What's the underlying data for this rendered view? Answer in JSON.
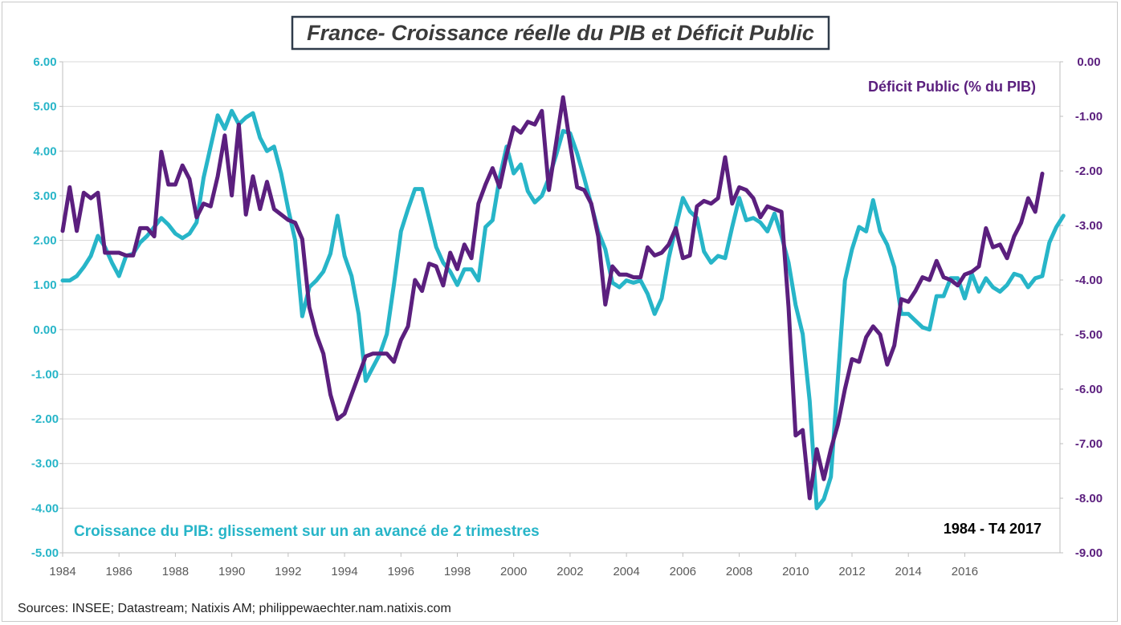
{
  "chart_data": {
    "type": "line",
    "title": "France- Croissance réelle du PIB et Déficit Public",
    "period_label": "1984 - T4 2017",
    "source": "Sources: INSEE; Datastream; Natixis AM; philippewaechter.nam.natixis.com",
    "grid": true,
    "x_axis": {
      "range": [
        1984,
        2018
      ],
      "ticks": [
        "1984",
        "1986",
        "1988",
        "1990",
        "1992",
        "1994",
        "1996",
        "1998",
        "2000",
        "2002",
        "2004",
        "2006",
        "2008",
        "2010",
        "2012",
        "2014",
        "2016"
      ]
    },
    "y_left": {
      "range": [
        -5,
        6
      ],
      "ticks": [
        "6.00",
        "5.00",
        "4.00",
        "3.00",
        "2.00",
        "1.00",
        "0.00",
        "-1.00",
        "-2.00",
        "-3.00",
        "-4.00",
        "-5.00"
      ]
    },
    "y_right": {
      "range": [
        -9,
        0
      ],
      "ticks": [
        "0.00",
        "-1.00",
        "-2.00",
        "-3.00",
        "-4.00",
        "-5.00",
        "-6.00",
        "-7.00",
        "-8.00",
        "-9.00"
      ]
    },
    "series": [
      {
        "name": "Croissance du PIB: glissement sur un an avancé de 2 trimestres",
        "axis": "left",
        "color": "#27b5c8",
        "points": [
          [
            1984.0,
            1.1
          ],
          [
            1984.25,
            1.1
          ],
          [
            1984.5,
            1.2
          ],
          [
            1984.75,
            1.4
          ],
          [
            1985.0,
            1.65
          ],
          [
            1985.25,
            2.1
          ],
          [
            1985.5,
            1.85
          ],
          [
            1985.75,
            1.5
          ],
          [
            1986.0,
            1.2
          ],
          [
            1986.25,
            1.65
          ],
          [
            1986.5,
            1.7
          ],
          [
            1986.75,
            1.95
          ],
          [
            1987.0,
            2.1
          ],
          [
            1987.25,
            2.3
          ],
          [
            1987.5,
            2.5
          ],
          [
            1987.75,
            2.35
          ],
          [
            1988.0,
            2.15
          ],
          [
            1988.25,
            2.05
          ],
          [
            1988.5,
            2.15
          ],
          [
            1988.75,
            2.4
          ],
          [
            1989.0,
            3.4
          ],
          [
            1989.25,
            4.1
          ],
          [
            1989.5,
            4.8
          ],
          [
            1989.75,
            4.5
          ],
          [
            1990.0,
            4.9
          ],
          [
            1990.25,
            4.6
          ],
          [
            1990.5,
            4.75
          ],
          [
            1990.75,
            4.85
          ],
          [
            1991.0,
            4.3
          ],
          [
            1991.25,
            4.0
          ],
          [
            1991.5,
            4.1
          ],
          [
            1991.75,
            3.5
          ],
          [
            1992.0,
            2.7
          ],
          [
            1992.25,
            2.0
          ],
          [
            1992.5,
            0.3
          ],
          [
            1992.75,
            0.95
          ],
          [
            1993.0,
            1.1
          ],
          [
            1993.25,
            1.3
          ],
          [
            1993.5,
            1.7
          ],
          [
            1993.75,
            2.55
          ],
          [
            1994.0,
            1.65
          ],
          [
            1994.25,
            1.2
          ],
          [
            1994.5,
            0.35
          ],
          [
            1994.75,
            -1.15
          ],
          [
            1995.0,
            -0.85
          ],
          [
            1995.25,
            -0.55
          ],
          [
            1995.5,
            -0.1
          ],
          [
            1995.75,
            1.0
          ],
          [
            1996.0,
            2.2
          ],
          [
            1996.25,
            2.7
          ],
          [
            1996.5,
            3.15
          ],
          [
            1996.75,
            3.15
          ],
          [
            1997.0,
            2.5
          ],
          [
            1997.25,
            1.85
          ],
          [
            1997.5,
            1.5
          ],
          [
            1997.75,
            1.3
          ],
          [
            1998.0,
            1.0
          ],
          [
            1998.25,
            1.35
          ],
          [
            1998.5,
            1.35
          ],
          [
            1998.75,
            1.1
          ],
          [
            1999.0,
            2.3
          ],
          [
            1999.25,
            2.45
          ],
          [
            1999.5,
            3.4
          ],
          [
            1999.75,
            4.1
          ],
          [
            2000.0,
            3.5
          ],
          [
            2000.25,
            3.7
          ],
          [
            2000.5,
            3.1
          ],
          [
            2000.75,
            2.85
          ],
          [
            2001.0,
            3.0
          ],
          [
            2001.25,
            3.4
          ],
          [
            2001.5,
            3.9
          ],
          [
            2001.75,
            4.45
          ],
          [
            2002.0,
            4.4
          ],
          [
            2002.25,
            3.95
          ],
          [
            2002.5,
            3.4
          ],
          [
            2002.75,
            2.8
          ],
          [
            2003.0,
            2.2
          ],
          [
            2003.25,
            1.8
          ],
          [
            2003.5,
            1.05
          ],
          [
            2003.75,
            0.95
          ],
          [
            2004.0,
            1.1
          ],
          [
            2004.25,
            1.05
          ],
          [
            2004.5,
            1.1
          ],
          [
            2004.75,
            0.8
          ],
          [
            2005.0,
            0.35
          ],
          [
            2005.25,
            0.7
          ],
          [
            2005.5,
            1.6
          ],
          [
            2005.75,
            2.3
          ],
          [
            2006.0,
            2.95
          ],
          [
            2006.25,
            2.65
          ],
          [
            2006.5,
            2.5
          ],
          [
            2006.75,
            1.75
          ],
          [
            2007.0,
            1.5
          ],
          [
            2007.25,
            1.65
          ],
          [
            2007.5,
            1.6
          ],
          [
            2007.75,
            2.3
          ],
          [
            2008.0,
            2.95
          ],
          [
            2008.25,
            2.45
          ],
          [
            2008.5,
            2.5
          ],
          [
            2008.75,
            2.4
          ],
          [
            2009.0,
            2.2
          ],
          [
            2009.25,
            2.6
          ],
          [
            2009.5,
            2.1
          ],
          [
            2009.75,
            1.5
          ],
          [
            2010.0,
            0.55
          ],
          [
            2010.25,
            -0.1
          ],
          [
            2010.5,
            -1.6
          ],
          [
            2010.75,
            -4.0
          ],
          [
            2011.0,
            -3.8
          ],
          [
            2011.25,
            -3.3
          ],
          [
            2011.5,
            -1.1
          ],
          [
            2011.75,
            1.1
          ],
          [
            2012.0,
            1.8
          ],
          [
            2012.25,
            2.3
          ],
          [
            2012.5,
            2.2
          ],
          [
            2012.75,
            2.9
          ],
          [
            2013.0,
            2.2
          ],
          [
            2013.25,
            1.9
          ],
          [
            2013.5,
            1.4
          ],
          [
            2013.75,
            0.35
          ],
          [
            2014.0,
            0.35
          ],
          [
            2014.25,
            0.2
          ],
          [
            2014.5,
            0.05
          ],
          [
            2014.75,
            0.0
          ],
          [
            2015.0,
            0.75
          ],
          [
            2015.25,
            0.75
          ],
          [
            2015.5,
            1.15
          ],
          [
            2015.75,
            1.15
          ],
          [
            2016.0,
            0.7
          ],
          [
            2016.25,
            1.25
          ],
          [
            2016.5,
            0.85
          ],
          [
            2016.75,
            1.15
          ],
          [
            2017.0,
            0.95
          ],
          [
            2017.25,
            0.85
          ],
          [
            2017.5,
            1.0
          ],
          [
            2017.75,
            1.25
          ],
          [
            2018.0,
            1.2
          ],
          [
            2018.25,
            0.95
          ],
          [
            2018.5,
            1.15
          ],
          [
            2018.75,
            1.2
          ],
          [
            2019.0,
            1.95
          ],
          [
            2019.25,
            2.3
          ],
          [
            2019.5,
            2.55
          ]
        ]
      },
      {
        "name": "Déficit Public (% du PIB)",
        "axis": "right",
        "color": "#5b1f7e",
        "points": [
          [
            1984.0,
            -3.1
          ],
          [
            1984.25,
            -2.3
          ],
          [
            1984.5,
            -3.1
          ],
          [
            1984.75,
            -2.4
          ],
          [
            1985.0,
            -2.5
          ],
          [
            1985.25,
            -2.4
          ],
          [
            1985.5,
            -3.5
          ],
          [
            1985.75,
            -3.5
          ],
          [
            1986.0,
            -3.5
          ],
          [
            1986.25,
            -3.55
          ],
          [
            1986.5,
            -3.55
          ],
          [
            1986.75,
            -3.05
          ],
          [
            1987.0,
            -3.05
          ],
          [
            1987.25,
            -3.2
          ],
          [
            1987.5,
            -1.65
          ],
          [
            1987.75,
            -2.25
          ],
          [
            1988.0,
            -2.25
          ],
          [
            1988.25,
            -1.9
          ],
          [
            1988.5,
            -2.15
          ],
          [
            1988.75,
            -2.85
          ],
          [
            1989.0,
            -2.6
          ],
          [
            1989.25,
            -2.65
          ],
          [
            1989.5,
            -2.1
          ],
          [
            1989.75,
            -1.35
          ],
          [
            1990.0,
            -2.45
          ],
          [
            1990.25,
            -1.15
          ],
          [
            1990.5,
            -2.8
          ],
          [
            1990.75,
            -2.1
          ],
          [
            1991.0,
            -2.7
          ],
          [
            1991.25,
            -2.2
          ],
          [
            1991.5,
            -2.7
          ],
          [
            1991.75,
            -2.8
          ],
          [
            1992.0,
            -2.9
          ],
          [
            1992.25,
            -2.95
          ],
          [
            1992.5,
            -3.25
          ],
          [
            1992.75,
            -4.5
          ],
          [
            1993.0,
            -5.0
          ],
          [
            1993.25,
            -5.35
          ],
          [
            1993.5,
            -6.1
          ],
          [
            1993.75,
            -6.55
          ],
          [
            1994.0,
            -6.45
          ],
          [
            1994.25,
            -6.1
          ],
          [
            1994.5,
            -5.75
          ],
          [
            1994.75,
            -5.4
          ],
          [
            1995.0,
            -5.35
          ],
          [
            1995.25,
            -5.35
          ],
          [
            1995.5,
            -5.35
          ],
          [
            1995.75,
            -5.5
          ],
          [
            1996.0,
            -5.1
          ],
          [
            1996.25,
            -4.85
          ],
          [
            1996.5,
            -4.0
          ],
          [
            1996.75,
            -4.2
          ],
          [
            1997.0,
            -3.7
          ],
          [
            1997.25,
            -3.75
          ],
          [
            1997.5,
            -4.1
          ],
          [
            1997.75,
            -3.5
          ],
          [
            1998.0,
            -3.8
          ],
          [
            1998.25,
            -3.35
          ],
          [
            1998.5,
            -3.6
          ],
          [
            1998.75,
            -2.6
          ],
          [
            1999.0,
            -2.25
          ],
          [
            1999.25,
            -1.95
          ],
          [
            1999.5,
            -2.3
          ],
          [
            1999.75,
            -1.7
          ],
          [
            2000.0,
            -1.2
          ],
          [
            2000.25,
            -1.3
          ],
          [
            2000.5,
            -1.1
          ],
          [
            2000.75,
            -1.15
          ],
          [
            2001.0,
            -0.9
          ],
          [
            2001.25,
            -2.35
          ],
          [
            2001.5,
            -1.5
          ],
          [
            2001.75,
            -0.65
          ],
          [
            2002.0,
            -1.5
          ],
          [
            2002.25,
            -2.3
          ],
          [
            2002.5,
            -2.35
          ],
          [
            2002.75,
            -2.6
          ],
          [
            2003.0,
            -3.2
          ],
          [
            2003.25,
            -4.45
          ],
          [
            2003.5,
            -3.75
          ],
          [
            2003.75,
            -3.9
          ],
          [
            2004.0,
            -3.9
          ],
          [
            2004.25,
            -3.95
          ],
          [
            2004.5,
            -3.95
          ],
          [
            2004.75,
            -3.4
          ],
          [
            2005.0,
            -3.55
          ],
          [
            2005.25,
            -3.5
          ],
          [
            2005.5,
            -3.35
          ],
          [
            2005.75,
            -3.05
          ],
          [
            2006.0,
            -3.6
          ],
          [
            2006.25,
            -3.55
          ],
          [
            2006.5,
            -2.65
          ],
          [
            2006.75,
            -2.55
          ],
          [
            2007.0,
            -2.6
          ],
          [
            2007.25,
            -2.5
          ],
          [
            2007.5,
            -1.75
          ],
          [
            2007.75,
            -2.6
          ],
          [
            2008.0,
            -2.3
          ],
          [
            2008.25,
            -2.35
          ],
          [
            2008.5,
            -2.5
          ],
          [
            2008.75,
            -2.85
          ],
          [
            2009.0,
            -2.65
          ],
          [
            2009.25,
            -2.7
          ],
          [
            2009.5,
            -2.75
          ],
          [
            2009.75,
            -4.5
          ],
          [
            2010.0,
            -6.85
          ],
          [
            2010.25,
            -6.75
          ],
          [
            2010.5,
            -8.0
          ],
          [
            2010.75,
            -7.1
          ],
          [
            2011.0,
            -7.65
          ],
          [
            2011.25,
            -7.1
          ],
          [
            2011.5,
            -6.65
          ],
          [
            2011.75,
            -6.0
          ],
          [
            2012.0,
            -5.45
          ],
          [
            2012.25,
            -5.5
          ],
          [
            2012.5,
            -5.05
          ],
          [
            2012.75,
            -4.85
          ],
          [
            2013.0,
            -5.0
          ],
          [
            2013.25,
            -5.55
          ],
          [
            2013.5,
            -5.2
          ],
          [
            2013.75,
            -4.35
          ],
          [
            2014.0,
            -4.4
          ],
          [
            2014.25,
            -4.2
          ],
          [
            2014.5,
            -3.95
          ],
          [
            2014.75,
            -4.0
          ],
          [
            2015.0,
            -3.65
          ],
          [
            2015.25,
            -3.95
          ],
          [
            2015.5,
            -4.0
          ],
          [
            2015.75,
            -4.1
          ],
          [
            2016.0,
            -3.9
          ],
          [
            2016.25,
            -3.85
          ],
          [
            2016.5,
            -3.75
          ],
          [
            2016.75,
            -3.05
          ],
          [
            2017.0,
            -3.4
          ],
          [
            2017.25,
            -3.35
          ],
          [
            2017.5,
            -3.6
          ],
          [
            2017.75,
            -3.2
          ],
          [
            2018.0,
            -2.95
          ],
          [
            2018.25,
            -2.5
          ],
          [
            2018.5,
            -2.75
          ],
          [
            2018.75,
            -2.05
          ]
        ]
      }
    ]
  }
}
